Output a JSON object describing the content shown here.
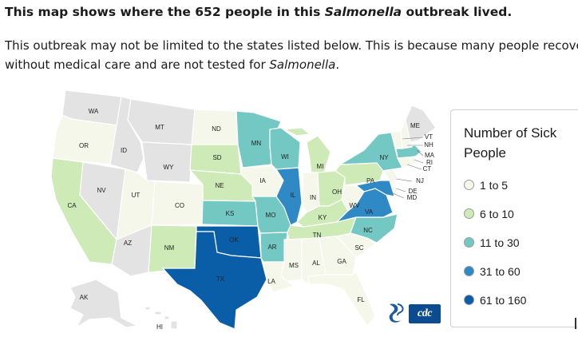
{
  "heading": {
    "prefix": "This map shows where the 652 people in this ",
    "organism": "Salmonella",
    "suffix": " outbreak lived."
  },
  "note": {
    "line1": "This outbreak may not be limited to the states listed below. This is because many people recove",
    "line2_prefix": "without medical care and are not tested for ",
    "line2_organism": "Salmonella",
    "line2_suffix": "."
  },
  "legend": {
    "title": "Number of Sick People",
    "bins": [
      {
        "label": "1 to 5",
        "color": "#f5f7ea"
      },
      {
        "label": "6 to 10",
        "color": "#cdeab7"
      },
      {
        "label": "11 to 30",
        "color": "#74c8c3"
      },
      {
        "label": "31 to 60",
        "color": "#2f89c5"
      },
      {
        "label": "61 to 160",
        "color": "#0a5ea8"
      }
    ]
  },
  "no_data_color": "#e3e3e3",
  "states": {
    "WA": {
      "label": "WA",
      "bin": null
    },
    "OR": {
      "label": "OR",
      "bin": 0
    },
    "CA": {
      "label": "CA",
      "bin": 1
    },
    "NV": {
      "label": "NV",
      "bin": null
    },
    "ID": {
      "label": "ID",
      "bin": null
    },
    "MT": {
      "label": "MT",
      "bin": null
    },
    "WY": {
      "label": "WY",
      "bin": null
    },
    "UT": {
      "label": "UT",
      "bin": 0
    },
    "AZ": {
      "label": "AZ",
      "bin": null
    },
    "CO": {
      "label": "CO",
      "bin": 0
    },
    "NM": {
      "label": "NM",
      "bin": 1
    },
    "ND": {
      "label": "ND",
      "bin": 0
    },
    "SD": {
      "label": "SD",
      "bin": 1
    },
    "NE": {
      "label": "NE",
      "bin": 1
    },
    "KS": {
      "label": "KS",
      "bin": 2
    },
    "OK": {
      "label": "OK",
      "bin": 4
    },
    "TX": {
      "label": "TX",
      "bin": 4
    },
    "MN": {
      "label": "MN",
      "bin": 2
    },
    "IA": {
      "label": "IA",
      "bin": 0
    },
    "MO": {
      "label": "MO",
      "bin": 2
    },
    "AR": {
      "label": "AR",
      "bin": 2
    },
    "LA": {
      "label": "LA",
      "bin": 0
    },
    "WI": {
      "label": "WI",
      "bin": 2
    },
    "IL": {
      "label": "IL",
      "bin": 3
    },
    "MI": {
      "label": "MI",
      "bin": 1
    },
    "IN": {
      "label": "IN",
      "bin": 0
    },
    "OH": {
      "label": "OH",
      "bin": 1
    },
    "KY": {
      "label": "KY",
      "bin": 1
    },
    "TN": {
      "label": "TN",
      "bin": 1
    },
    "MS": {
      "label": "MS",
      "bin": 0
    },
    "AL": {
      "label": "AL",
      "bin": 0
    },
    "GA": {
      "label": "GA",
      "bin": 0
    },
    "FL": {
      "label": "FL",
      "bin": 0
    },
    "SC": {
      "label": "SC",
      "bin": 0
    },
    "NC": {
      "label": "NC",
      "bin": 2
    },
    "VA": {
      "label": "VA",
      "bin": 3
    },
    "WV": {
      "label": "WV",
      "bin": 0
    },
    "PA": {
      "label": "PA",
      "bin": 1
    },
    "NY": {
      "label": "NY",
      "bin": 2
    },
    "MD": {
      "label": "MD",
      "bin": 3
    },
    "DE": {
      "label": "DE",
      "bin": 0
    },
    "NJ": {
      "label": "NJ",
      "bin": 0
    },
    "CT": {
      "label": "CT",
      "bin": 0
    },
    "RI": {
      "label": "RI",
      "bin": 0
    },
    "MA": {
      "label": "MA",
      "bin": 2
    },
    "VT": {
      "label": "VT",
      "bin": 0
    },
    "NH": {
      "label": "NH",
      "bin": 0
    },
    "ME": {
      "label": "ME",
      "bin": null
    },
    "AK": {
      "label": "AK",
      "bin": null
    },
    "HI": {
      "label": "HI",
      "bin": null
    }
  }
}
